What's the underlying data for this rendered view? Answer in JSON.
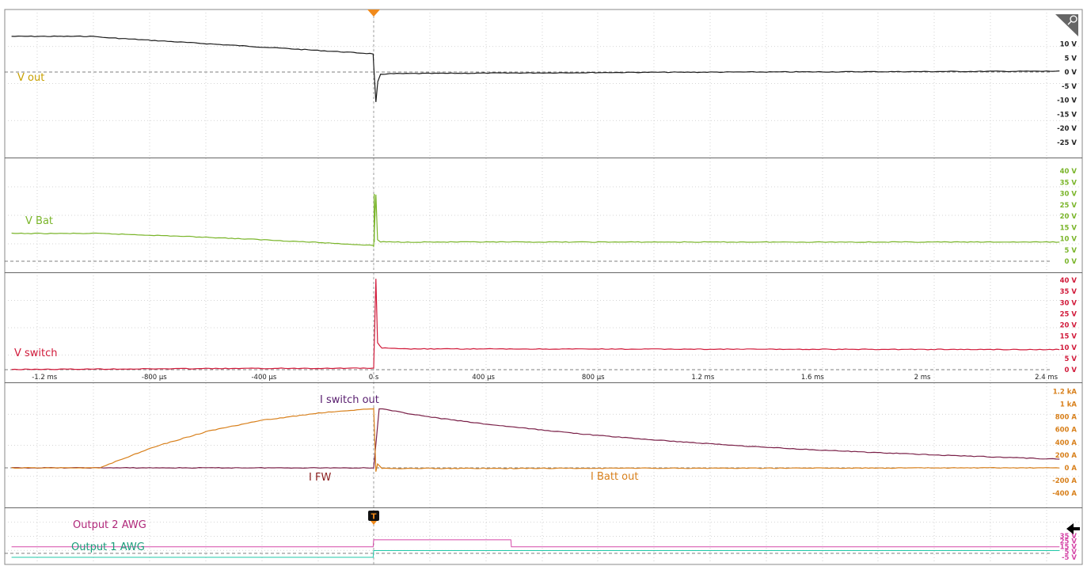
{
  "colors": {
    "vout": "#1a1a1a",
    "vout_label": "#c8a000",
    "vbat": "#7ab52a",
    "vswitch": "#d11a3a",
    "iswitch": "#7a2048",
    "iswitch_label": "#5a2070",
    "ibatt": "#d8801c",
    "ifw_label": "#8a1c1c",
    "awg2": "#d548a8",
    "awg2_label": "#b0287a",
    "awg1": "#20c8a8",
    "awg1_label": "#1a9e7a",
    "grid": "#c8c8c8",
    "trigger": "#f08a1c"
  },
  "time_axis": {
    "tick_labels": [
      "-1.2 ms",
      "-800 µs",
      "-400 µs",
      "0 s",
      "400 µs",
      "800 µs",
      "1.2 ms",
      "1.6 ms",
      "2 ms",
      "2.4 ms"
    ],
    "range_us": [
      -1320,
      2500
    ]
  },
  "trigger_marker": "T",
  "chart_data": [
    {
      "type": "line",
      "panel": "vout",
      "series": [
        {
          "name": "V out",
          "x": [
            -1320,
            -1010,
            -1000,
            -2,
            0,
            8,
            15,
            25,
            50,
            200,
            1000,
            2500
          ],
          "values": [
            12.7,
            12.7,
            12.4,
            6.5,
            2.5,
            -10.8,
            -3.5,
            -0.9,
            -0.6,
            -0.5,
            -0.1,
            0.3
          ]
        }
      ],
      "y_ticks": [
        "10 V",
        "5 V",
        "0 V",
        "-5 V",
        "-10 V",
        "-15 V",
        "-20 V",
        "-25 V"
      ],
      "y_tick_values": [
        10,
        5,
        0,
        -5,
        -10,
        -15,
        -20,
        -25
      ],
      "ylim": [
        -27.5,
        13
      ]
    },
    {
      "type": "line",
      "panel": "vbat",
      "series": [
        {
          "name": "V Bat",
          "x": [
            -1320,
            -1000,
            -800,
            -600,
            -400,
            -200,
            -2,
            0,
            8,
            14,
            25,
            100,
            2500
          ],
          "values": [
            12.3,
            12.3,
            11.5,
            10.6,
            9.5,
            8.3,
            7.0,
            6.5,
            29.5,
            9.5,
            8.6,
            8.5,
            8.5
          ],
          "peak_value": 29.8
        }
      ],
      "y_ticks": [
        "40 V",
        "35 V",
        "30 V",
        "25 V",
        "20 V",
        "15 V",
        "10 V",
        "5 V",
        "0 V"
      ],
      "y_tick_values": [
        40,
        35,
        30,
        25,
        20,
        15,
        10,
        5,
        0
      ],
      "ylim": [
        -1,
        42
      ]
    },
    {
      "type": "line",
      "panel": "vswitch",
      "series": [
        {
          "name": "V switch",
          "x": [
            -1320,
            -600,
            -2,
            0,
            8,
            14,
            30,
            100,
            2500
          ],
          "values": [
            0.1,
            0.5,
            0.7,
            0.7,
            40.5,
            12.0,
            9.7,
            9.3,
            9.0
          ]
        }
      ],
      "y_ticks": [
        "40 V",
        "35 V",
        "30 V",
        "25 V",
        "20 V",
        "15 V",
        "10 V",
        "5 V",
        "0 V"
      ],
      "y_tick_values": [
        40,
        35,
        30,
        25,
        20,
        15,
        10,
        5,
        0
      ],
      "ylim": [
        -1,
        43
      ]
    },
    {
      "type": "line",
      "panel": "current",
      "series": [
        {
          "name": "I switch out",
          "x": [
            -1320,
            -2,
            0,
            20,
            200,
            400,
            600,
            800,
            1000,
            1200,
            1400,
            1600,
            1800,
            2000,
            2200,
            2500
          ],
          "values": [
            0,
            0,
            0,
            930,
            800,
            690,
            600,
            515,
            445,
            385,
            330,
            285,
            245,
            210,
            180,
            135
          ]
        },
        {
          "name": "I Batt out",
          "x": [
            -1320,
            -1000,
            -800,
            -600,
            -400,
            -200,
            -2,
            0,
            8,
            14,
            30,
            2500
          ],
          "values": [
            0,
            0,
            330,
            580,
            750,
            860,
            930,
            930,
            -60,
            60,
            -10,
            0
          ]
        }
      ],
      "extra_labels": [
        "I FW"
      ],
      "y_ticks": [
        "1.2 kA",
        "1 kA",
        "800 A",
        "600 A",
        "400 A",
        "200 A",
        "0 A",
        "-200 A",
        "-400 A"
      ],
      "y_tick_values": [
        1200,
        1000,
        800,
        600,
        400,
        200,
        0,
        -200,
        -400
      ],
      "ylim": [
        -500,
        1280
      ]
    },
    {
      "type": "line",
      "panel": "awg",
      "series": [
        {
          "name": "Output 2 AWG",
          "x": [
            -1320,
            -2,
            0,
            500,
            502,
            2500
          ],
          "values": [
            14.5,
            14.5,
            27.5,
            27.5,
            14.5,
            14.5
          ]
        },
        {
          "name": "Output 1 AWG",
          "x": [
            -1320,
            -2,
            0,
            2500
          ],
          "values": [
            -5,
            -5,
            7.5,
            7.5
          ]
        }
      ],
      "y_ticks": [
        "35 V",
        "25 V",
        "15 V",
        "5 V",
        "-5 V"
      ],
      "y_tick_values": [
        35,
        25,
        15,
        5,
        -5
      ],
      "ylim": [
        -7,
        37
      ]
    }
  ]
}
